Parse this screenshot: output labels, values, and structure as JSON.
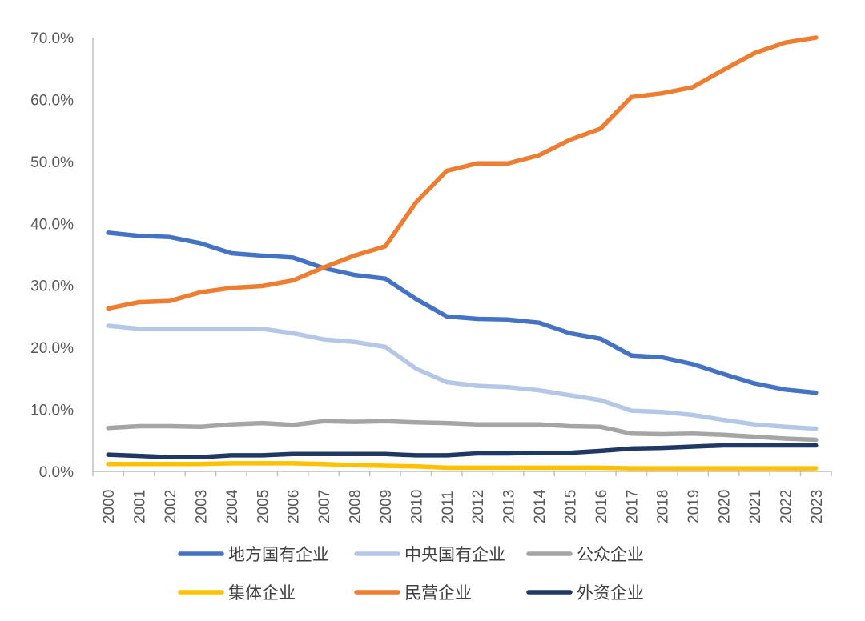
{
  "chart_data": {
    "type": "line",
    "title": "",
    "xlabel": "",
    "ylabel": "",
    "ylim": [
      0,
      70
    ],
    "ytick_step": 10,
    "ytick_format": "percent_1dp",
    "grid": false,
    "legend_position": "bottom",
    "x": [
      "2000",
      "2001",
      "2002",
      "2003",
      "2004",
      "2005",
      "2006",
      "2007",
      "2008",
      "2009",
      "2010",
      "2011",
      "2012",
      "2013",
      "2014",
      "2015",
      "2016",
      "2017",
      "2018",
      "2019",
      "2020",
      "2021",
      "2022",
      "2023"
    ],
    "series": [
      {
        "name": "地方国有企业",
        "color": "#4472C4",
        "values": [
          38.5,
          38.0,
          37.8,
          36.8,
          35.2,
          34.8,
          34.5,
          32.8,
          31.7,
          31.1,
          27.8,
          25.0,
          24.6,
          24.5,
          24.0,
          22.3,
          21.4,
          18.7,
          18.4,
          17.3,
          15.7,
          14.2,
          13.2,
          12.7
        ]
      },
      {
        "name": "中央国有企业",
        "color": "#B4C7E7",
        "values": [
          23.5,
          23.0,
          23.0,
          23.0,
          23.0,
          23.0,
          22.3,
          21.3,
          20.9,
          20.1,
          16.6,
          14.4,
          13.8,
          13.6,
          13.1,
          12.3,
          11.5,
          9.8,
          9.6,
          9.1,
          8.3,
          7.6,
          7.2,
          6.9
        ]
      },
      {
        "name": "公众企业",
        "color": "#A5A5A5",
        "values": [
          7.0,
          7.3,
          7.3,
          7.2,
          7.6,
          7.8,
          7.5,
          8.1,
          8.0,
          8.1,
          7.9,
          7.8,
          7.6,
          7.6,
          7.6,
          7.3,
          7.2,
          6.1,
          6.0,
          6.1,
          5.9,
          5.6,
          5.3,
          5.1
        ]
      },
      {
        "name": "集体企业",
        "color": "#FFC000",
        "values": [
          1.2,
          1.2,
          1.2,
          1.2,
          1.3,
          1.3,
          1.3,
          1.2,
          1.0,
          0.9,
          0.8,
          0.6,
          0.6,
          0.6,
          0.6,
          0.6,
          0.6,
          0.5,
          0.5,
          0.5,
          0.5,
          0.5,
          0.5,
          0.5
        ]
      },
      {
        "name": "民营企业",
        "color": "#ED7D31",
        "values": [
          26.3,
          27.3,
          27.5,
          28.9,
          29.6,
          29.9,
          30.8,
          32.9,
          34.8,
          36.3,
          43.4,
          48.5,
          49.7,
          49.7,
          51.0,
          53.5,
          55.3,
          60.4,
          61.0,
          62.0,
          64.8,
          67.5,
          69.2,
          70.0
        ]
      },
      {
        "name": "外资企业",
        "color": "#203864",
        "values": [
          2.7,
          2.5,
          2.3,
          2.3,
          2.6,
          2.6,
          2.8,
          2.8,
          2.8,
          2.8,
          2.6,
          2.6,
          2.9,
          2.9,
          3.0,
          3.0,
          3.3,
          3.7,
          3.8,
          4.0,
          4.2,
          4.2,
          4.2,
          4.2
        ]
      }
    ]
  }
}
